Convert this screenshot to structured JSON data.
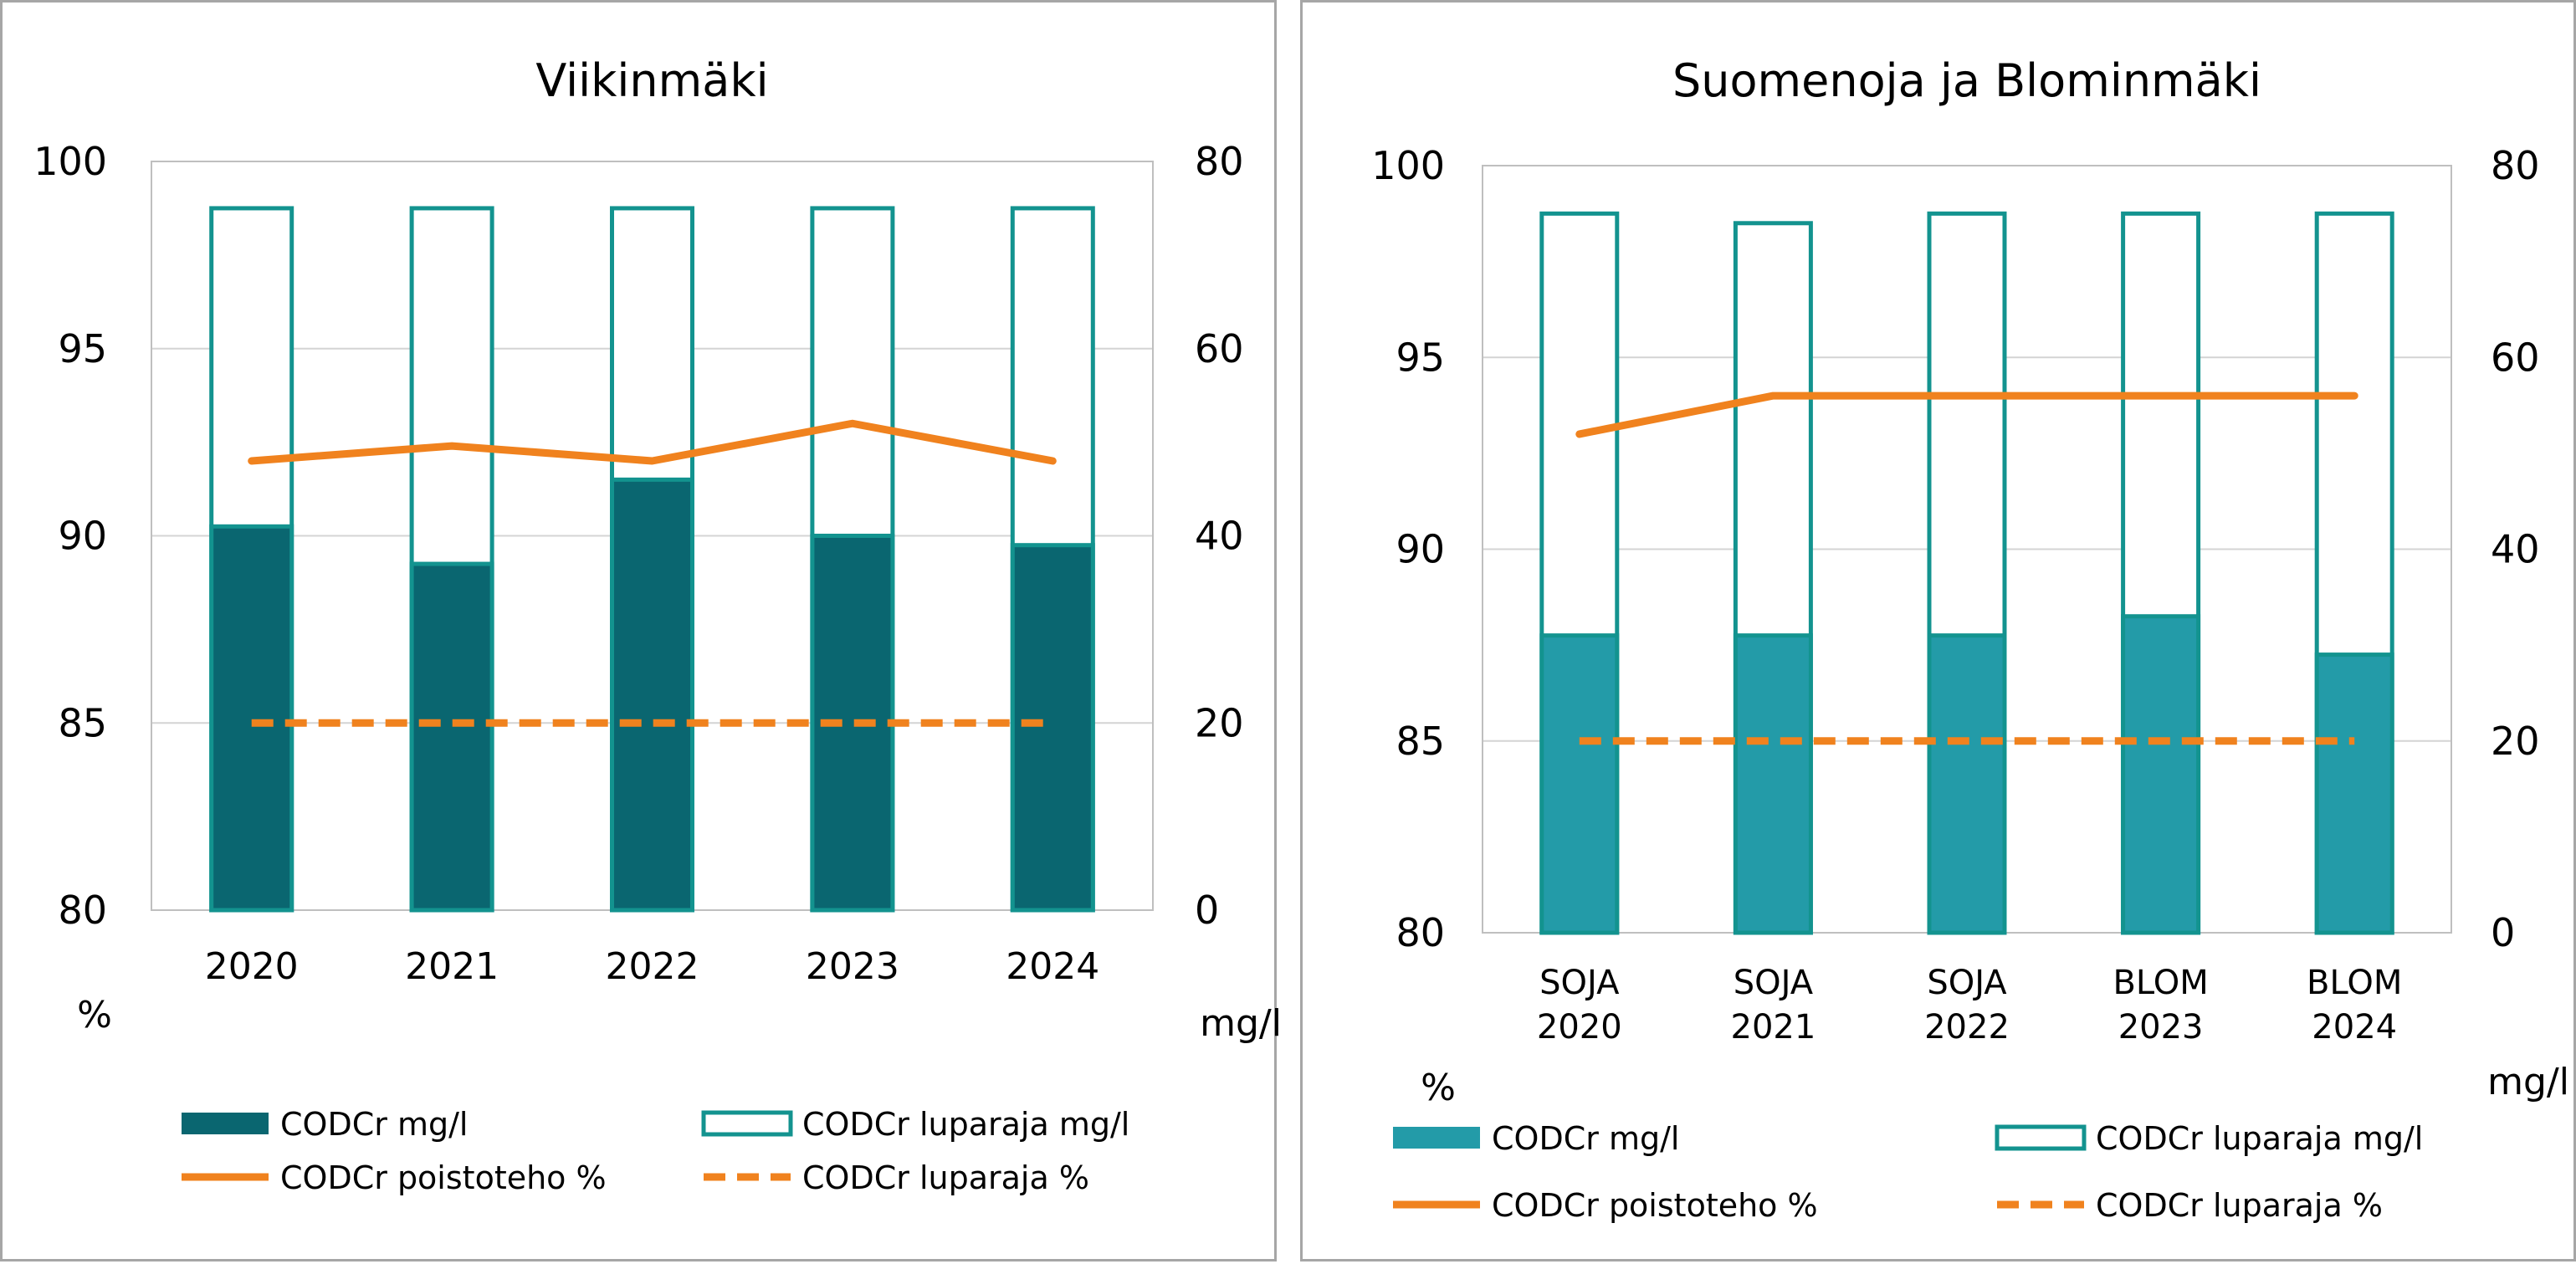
{
  "chart_data": [
    {
      "type": "bar",
      "title": "Viikinmäki",
      "categories": [
        [
          "2020"
        ],
        [
          "2021"
        ],
        [
          "2022"
        ],
        [
          "2023"
        ],
        [
          "2024"
        ]
      ],
      "y_left": {
        "label": "%",
        "range": [
          80,
          100
        ],
        "ticks": [
          80,
          85,
          90,
          95,
          100
        ]
      },
      "y_right": {
        "label": "mg/l",
        "range": [
          0,
          80
        ],
        "ticks": [
          0,
          20,
          40,
          60,
          80
        ]
      },
      "grid": true,
      "legend_position": "bottom",
      "series": [
        {
          "name": "CODCr mg/l",
          "kind": "bar",
          "axis": "right",
          "fill": "#0a6670",
          "values": [
            41,
            37,
            46,
            40,
            39
          ]
        },
        {
          "name": "CODCr  luparaja mg/l",
          "kind": "bar-outline",
          "axis": "right",
          "stroke": "#13938f",
          "values": [
            75,
            75,
            75,
            75,
            75
          ]
        },
        {
          "name": "CODCr poistoteho %",
          "kind": "line",
          "axis": "left",
          "color": "#f0821e",
          "values": [
            92,
            92.4,
            92,
            93,
            92
          ]
        },
        {
          "name": "CODCr luparaja  %",
          "kind": "dashed-line",
          "axis": "left",
          "color": "#f0821e",
          "values": [
            85,
            85,
            85,
            85,
            85
          ]
        }
      ]
    },
    {
      "type": "bar",
      "title": "Suomenoja ja Blominmäki",
      "categories": [
        [
          "SOJA",
          "2020"
        ],
        [
          "SOJA",
          "2021"
        ],
        [
          "SOJA",
          "2022"
        ],
        [
          "BLOM",
          "2023"
        ],
        [
          "BLOM",
          "2024"
        ]
      ],
      "y_left": {
        "label": "%",
        "range": [
          80,
          100
        ],
        "ticks": [
          80,
          85,
          90,
          95,
          100
        ]
      },
      "y_right": {
        "label": "mg/l",
        "range": [
          0,
          80
        ],
        "ticks": [
          0,
          20,
          40,
          60,
          80
        ]
      },
      "grid": true,
      "legend_position": "bottom",
      "series": [
        {
          "name": "CODCr mg/l",
          "kind": "bar",
          "axis": "right",
          "fill": "#239ba8",
          "values": [
            31,
            31,
            31,
            33,
            29
          ]
        },
        {
          "name": "CODCr luparaja  mg/l",
          "kind": "bar-outline",
          "axis": "right",
          "stroke": "#13938f",
          "values": [
            75,
            74,
            75,
            75,
            75
          ]
        },
        {
          "name": "CODCr poistoteho %",
          "kind": "line",
          "axis": "left",
          "color": "#f0821e",
          "values": [
            93,
            94,
            94,
            94,
            94
          ]
        },
        {
          "name": "CODCr luparaja %",
          "kind": "dashed-line",
          "axis": "left",
          "color": "#f0821e",
          "values": [
            85,
            85,
            85,
            85,
            85
          ]
        }
      ]
    }
  ]
}
